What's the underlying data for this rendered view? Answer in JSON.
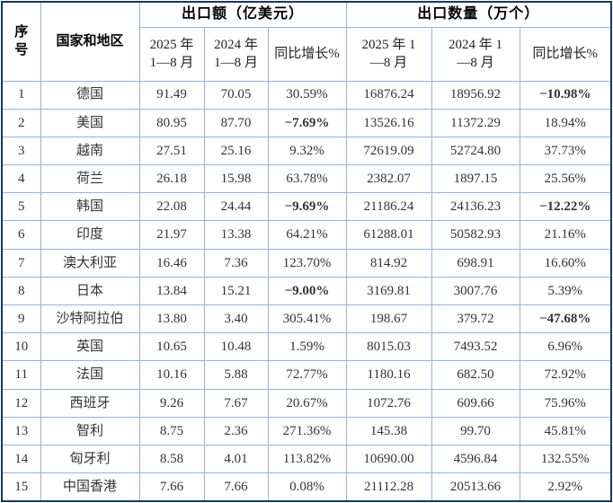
{
  "table": {
    "title_semantic": "export-by-country-table",
    "header": {
      "col_serial": "序\n号",
      "col_country": "国家和地区",
      "group_value": "出口额（亿美元）",
      "group_qty": "出口数量（万个）",
      "sub_value_2025": "2025 年\n1—8 月",
      "sub_value_2024": "2024 年\n1—8 月",
      "sub_value_growth": "同比增长%",
      "sub_qty_2025": "2025 年 1\n—8 月",
      "sub_qty_2024": "2024 年 1\n—8 月",
      "sub_qty_growth": "同比增长%"
    },
    "rows": [
      [
        "1",
        "德国",
        "91.49",
        "70.05",
        "30.59%",
        "16876.24",
        "18956.92",
        "−10.98%"
      ],
      [
        "2",
        "美国",
        "80.95",
        "87.70",
        "−7.69%",
        "13526.16",
        "11372.29",
        "18.94%"
      ],
      [
        "3",
        "越南",
        "27.51",
        "25.16",
        "9.32%",
        "72619.09",
        "52724.80",
        "37.73%"
      ],
      [
        "4",
        "荷兰",
        "26.18",
        "15.98",
        "63.78%",
        "2382.07",
        "1897.15",
        "25.56%"
      ],
      [
        "5",
        "韩国",
        "22.08",
        "24.44",
        "−9.69%",
        "21186.24",
        "24136.23",
        "−12.22%"
      ],
      [
        "6",
        "印度",
        "21.97",
        "13.38",
        "64.21%",
        "61288.01",
        "50582.93",
        "21.16%"
      ],
      [
        "7",
        "澳大利亚",
        "16.46",
        "7.36",
        "123.70%",
        "814.92",
        "698.91",
        "16.60%"
      ],
      [
        "8",
        "日本",
        "13.84",
        "15.21",
        "−9.00%",
        "3169.81",
        "3007.76",
        "5.39%"
      ],
      [
        "9",
        "沙特阿拉伯",
        "13.80",
        "3.40",
        "305.41%",
        "198.67",
        "379.72",
        "−47.68%"
      ],
      [
        "10",
        "英国",
        "10.65",
        "10.48",
        "1.59%",
        "8015.03",
        "7493.52",
        "6.96%"
      ],
      [
        "11",
        "法国",
        "10.16",
        "5.88",
        "72.77%",
        "1180.16",
        "682.50",
        "72.92%"
      ],
      [
        "12",
        "西班牙",
        "9.26",
        "7.67",
        "20.67%",
        "1072.76",
        "609.66",
        "75.96%"
      ],
      [
        "13",
        "智利",
        "8.75",
        "2.36",
        "271.36%",
        "145.38",
        "99.70",
        "45.81%"
      ],
      [
        "14",
        "匈牙利",
        "8.58",
        "4.01",
        "113.82%",
        "10690.00",
        "4596.84",
        "132.55%"
      ],
      [
        "15",
        "中国香港",
        "7.66",
        "7.66",
        "0.08%",
        "21112.28",
        "20513.66",
        "2.92%"
      ]
    ],
    "colors": {
      "outer_border": "#17375e",
      "grid_line": "#95b3d7",
      "text": "#333333",
      "negative_value": "#ff0000",
      "background": "#ffffff"
    }
  }
}
